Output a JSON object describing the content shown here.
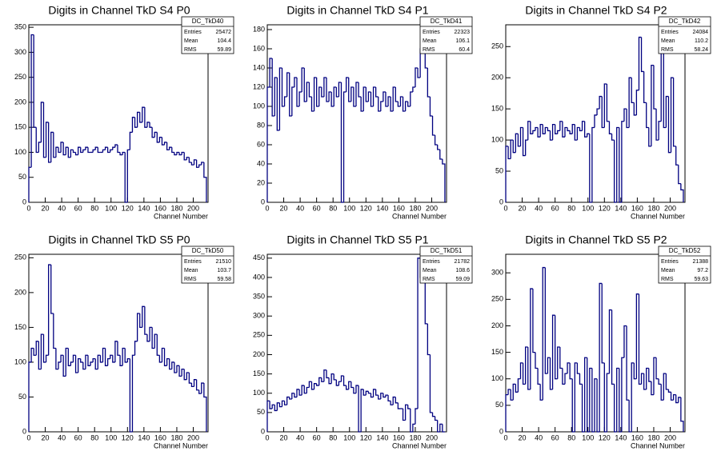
{
  "chart_data": [
    {
      "type": "histogram",
      "title": "Digits in Channel TkD S4 P0",
      "xlabel": "Channel Number",
      "color": "#000080",
      "bins": [
        0,
        3,
        6,
        9,
        12,
        15,
        18,
        21,
        24,
        27,
        30,
        33,
        36,
        39,
        42,
        45,
        48,
        51,
        54,
        57,
        60,
        63,
        66,
        69,
        72,
        75,
        78,
        81,
        84,
        87,
        90,
        93,
        96,
        99,
        102,
        105,
        108,
        111,
        114,
        117,
        120,
        123,
        126,
        129,
        132,
        135,
        138,
        141,
        144,
        147,
        150,
        153,
        156,
        159,
        162,
        165,
        168,
        171,
        174,
        177,
        180,
        183,
        186,
        189,
        192,
        195,
        198,
        201,
        204,
        207,
        210,
        213,
        216
      ],
      "values": [
        70,
        335,
        150,
        100,
        120,
        200,
        90,
        160,
        80,
        140,
        90,
        110,
        100,
        120,
        95,
        110,
        90,
        105,
        100,
        95,
        110,
        100,
        105,
        110,
        100,
        100,
        105,
        110,
        100,
        100,
        105,
        110,
        100,
        105,
        110,
        115,
        100,
        95,
        100,
        0,
        105,
        140,
        170,
        150,
        180,
        160,
        190,
        150,
        160,
        150,
        130,
        140,
        120,
        130,
        115,
        120,
        105,
        110,
        100,
        95,
        100,
        95,
        100,
        85,
        90,
        80,
        75,
        85,
        70,
        75,
        80,
        50
      ],
      "xlim": [
        0,
        218
      ],
      "xticks": [
        0,
        20,
        40,
        60,
        80,
        100,
        120,
        140,
        160,
        180,
        200
      ],
      "ylim": [
        0,
        355
      ],
      "yticks": [
        0,
        50,
        100,
        150,
        200,
        250,
        300,
        350
      ],
      "stats": {
        "name": "DC_TkD40",
        "labels": [
          "Entries",
          "Mean",
          "RMS"
        ],
        "values": [
          25472,
          104.4,
          59.89
        ]
      }
    },
    {
      "type": "histogram",
      "title": "Digits in Channel TkD S4 P1",
      "xlabel": "Channel Number",
      "color": "#000080",
      "bins": [
        0,
        3,
        6,
        9,
        12,
        15,
        18,
        21,
        24,
        27,
        30,
        33,
        36,
        39,
        42,
        45,
        48,
        51,
        54,
        57,
        60,
        63,
        66,
        69,
        72,
        75,
        78,
        81,
        84,
        87,
        90,
        93,
        96,
        99,
        102,
        105,
        108,
        111,
        114,
        117,
        120,
        123,
        126,
        129,
        132,
        135,
        138,
        141,
        144,
        147,
        150,
        153,
        156,
        159,
        162,
        165,
        168,
        171,
        174,
        177,
        180,
        183,
        186,
        189,
        192,
        195,
        198,
        201,
        204,
        207,
        210,
        213,
        216
      ],
      "values": [
        120,
        150,
        90,
        130,
        75,
        140,
        100,
        110,
        135,
        90,
        120,
        130,
        100,
        115,
        140,
        105,
        125,
        110,
        95,
        130,
        100,
        120,
        110,
        130,
        105,
        115,
        100,
        120,
        110,
        125,
        0,
        115,
        130,
        105,
        120,
        100,
        125,
        110,
        95,
        120,
        105,
        115,
        100,
        120,
        110,
        95,
        105,
        115,
        100,
        110,
        95,
        120,
        105,
        100,
        110,
        95,
        105,
        100,
        115,
        120,
        140,
        130,
        160,
        175,
        140,
        110,
        90,
        70,
        60,
        55,
        45,
        40
      ],
      "xlim": [
        0,
        218
      ],
      "xticks": [
        0,
        20,
        40,
        60,
        80,
        100,
        120,
        140,
        160,
        180,
        200
      ],
      "ylim": [
        0,
        185
      ],
      "yticks": [
        0,
        20,
        40,
        60,
        80,
        100,
        120,
        140,
        160,
        180
      ],
      "stats": {
        "name": "DC_TkD41",
        "labels": [
          "Entries",
          "Mean",
          "RMS"
        ],
        "values": [
          22323,
          106.1,
          60.4
        ]
      }
    },
    {
      "type": "histogram",
      "title": "Digits in Channel TkD S4 P2",
      "xlabel": "Channel Number",
      "color": "#000080",
      "bins": [
        0,
        3,
        6,
        9,
        12,
        15,
        18,
        21,
        24,
        27,
        30,
        33,
        36,
        39,
        42,
        45,
        48,
        51,
        54,
        57,
        60,
        63,
        66,
        69,
        72,
        75,
        78,
        81,
        84,
        87,
        90,
        93,
        96,
        99,
        102,
        105,
        108,
        111,
        114,
        117,
        120,
        123,
        126,
        129,
        132,
        135,
        138,
        141,
        144,
        147,
        150,
        153,
        156,
        159,
        162,
        165,
        168,
        171,
        174,
        177,
        180,
        183,
        186,
        189,
        192,
        195,
        198,
        201,
        204,
        207,
        210,
        213,
        216
      ],
      "values": [
        90,
        70,
        100,
        80,
        110,
        90,
        120,
        75,
        100,
        130,
        110,
        115,
        120,
        105,
        125,
        110,
        120,
        115,
        100,
        125,
        110,
        115,
        130,
        105,
        120,
        115,
        110,
        125,
        100,
        120,
        115,
        130,
        105,
        110,
        0,
        120,
        140,
        150,
        170,
        120,
        190,
        130,
        110,
        100,
        0,
        120,
        0,
        130,
        150,
        120,
        200,
        160,
        140,
        180,
        265,
        210,
        160,
        120,
        90,
        220,
        150,
        100,
        130,
        250,
        120,
        170,
        80,
        200,
        90,
        60,
        30,
        20
      ],
      "xlim": [
        0,
        218
      ],
      "xticks": [
        0,
        20,
        40,
        60,
        80,
        100,
        120,
        140,
        160,
        180,
        200
      ],
      "ylim": [
        0,
        285
      ],
      "yticks": [
        0,
        50,
        100,
        150,
        200,
        250
      ],
      "stats": {
        "name": "DC_TkD42",
        "labels": [
          "Entries",
          "Mean",
          "RMS"
        ],
        "values": [
          24084,
          110.2,
          58.24
        ]
      }
    },
    {
      "type": "histogram",
      "title": "Digits in Channel TkD S5 P0",
      "xlabel": "Channel Number",
      "color": "#000080",
      "bins": [
        0,
        3,
        6,
        9,
        12,
        15,
        18,
        21,
        24,
        27,
        30,
        33,
        36,
        39,
        42,
        45,
        48,
        51,
        54,
        57,
        60,
        63,
        66,
        69,
        72,
        75,
        78,
        81,
        84,
        87,
        90,
        93,
        96,
        99,
        102,
        105,
        108,
        111,
        114,
        117,
        120,
        123,
        126,
        129,
        132,
        135,
        138,
        141,
        144,
        147,
        150,
        153,
        156,
        159,
        162,
        165,
        168,
        171,
        174,
        177,
        180,
        183,
        186,
        189,
        192,
        195,
        198,
        201,
        204,
        207,
        210,
        213,
        216
      ],
      "values": [
        100,
        120,
        110,
        130,
        90,
        140,
        100,
        110,
        240,
        170,
        120,
        90,
        100,
        110,
        80,
        120,
        95,
        100,
        110,
        85,
        105,
        100,
        90,
        110,
        95,
        100,
        105,
        90,
        110,
        100,
        120,
        95,
        105,
        110,
        100,
        130,
        110,
        95,
        120,
        100,
        105,
        0,
        110,
        130,
        170,
        150,
        180,
        140,
        130,
        150,
        120,
        140,
        110,
        100,
        120,
        95,
        105,
        90,
        100,
        85,
        95,
        80,
        90,
        75,
        85,
        70,
        65,
        75,
        60,
        55,
        70,
        50
      ],
      "xlim": [
        0,
        218
      ],
      "xticks": [
        0,
        20,
        40,
        60,
        80,
        100,
        120,
        140,
        160,
        180,
        200
      ],
      "ylim": [
        0,
        255
      ],
      "yticks": [
        0,
        50,
        100,
        150,
        200,
        250
      ],
      "stats": {
        "name": "DC_TkD50",
        "labels": [
          "Entries",
          "Mean",
          "RMS"
        ],
        "values": [
          21510,
          103.7,
          59.58
        ]
      }
    },
    {
      "type": "histogram",
      "title": "Digits in Channel TkD S5 P1",
      "xlabel": "Channel Number",
      "color": "#000080",
      "bins": [
        0,
        3,
        6,
        9,
        12,
        15,
        18,
        21,
        24,
        27,
        30,
        33,
        36,
        39,
        42,
        45,
        48,
        51,
        54,
        57,
        60,
        63,
        66,
        69,
        72,
        75,
        78,
        81,
        84,
        87,
        90,
        93,
        96,
        99,
        102,
        105,
        108,
        111,
        114,
        117,
        120,
        123,
        126,
        129,
        132,
        135,
        138,
        141,
        144,
        147,
        150,
        153,
        156,
        159,
        162,
        165,
        168,
        171,
        174,
        177,
        180,
        183,
        186,
        189,
        192,
        195,
        198,
        201,
        204,
        207,
        210,
        213,
        216
      ],
      "values": [
        80,
        60,
        70,
        55,
        75,
        65,
        80,
        70,
        90,
        85,
        100,
        90,
        110,
        95,
        120,
        100,
        115,
        130,
        110,
        125,
        120,
        140,
        130,
        160,
        140,
        125,
        150,
        135,
        120,
        130,
        145,
        120,
        110,
        130,
        115,
        100,
        120,
        0,
        110,
        95,
        105,
        100,
        90,
        110,
        95,
        85,
        100,
        90,
        95,
        80,
        70,
        90,
        75,
        60,
        60,
        30,
        70,
        60,
        0,
        20,
        60,
        450,
        400,
        420,
        280,
        200,
        50,
        40,
        30,
        0,
        20,
        0
      ],
      "xlim": [
        0,
        218
      ],
      "xticks": [
        0,
        20,
        40,
        60,
        80,
        100,
        120,
        140,
        160,
        180,
        200
      ],
      "ylim": [
        0,
        460
      ],
      "yticks": [
        0,
        50,
        100,
        150,
        200,
        250,
        300,
        350,
        400,
        450
      ],
      "stats": {
        "name": "DC_TkD51",
        "labels": [
          "Entries",
          "Mean",
          "RMS"
        ],
        "values": [
          21782,
          108.6,
          59.09
        ]
      }
    },
    {
      "type": "histogram",
      "title": "Digits in Channel TkD S5 P2",
      "xlabel": "Channel Number",
      "color": "#000080",
      "bins": [
        0,
        3,
        6,
        9,
        12,
        15,
        18,
        21,
        24,
        27,
        30,
        33,
        36,
        39,
        42,
        45,
        48,
        51,
        54,
        57,
        60,
        63,
        66,
        69,
        72,
        75,
        78,
        81,
        84,
        87,
        90,
        93,
        96,
        99,
        102,
        105,
        108,
        111,
        114,
        117,
        120,
        123,
        126,
        129,
        132,
        135,
        138,
        141,
        144,
        147,
        150,
        153,
        156,
        159,
        162,
        165,
        168,
        171,
        174,
        177,
        180,
        183,
        186,
        189,
        192,
        195,
        198,
        201,
        204,
        207,
        210,
        213,
        216
      ],
      "values": [
        70,
        80,
        60,
        90,
        75,
        100,
        130,
        90,
        160,
        80,
        270,
        150,
        120,
        90,
        60,
        310,
        110,
        140,
        80,
        220,
        100,
        160,
        120,
        90,
        110,
        130,
        100,
        0,
        130,
        110,
        90,
        0,
        140,
        0,
        120,
        0,
        100,
        0,
        280,
        130,
        0,
        110,
        230,
        90,
        0,
        120,
        0,
        140,
        200,
        60,
        0,
        130,
        100,
        260,
        90,
        110,
        80,
        120,
        95,
        70,
        140,
        100,
        90,
        60,
        110,
        80,
        75,
        60,
        70,
        55,
        65,
        20
      ],
      "xlim": [
        0,
        218
      ],
      "xticks": [
        0,
        20,
        40,
        60,
        80,
        100,
        120,
        140,
        160,
        180,
        200
      ],
      "ylim": [
        0,
        335
      ],
      "yticks": [
        0,
        50,
        100,
        150,
        200,
        250,
        300
      ],
      "stats": {
        "name": "DC_TkD52",
        "labels": [
          "Entries",
          "Mean",
          "RMS"
        ],
        "values": [
          21388,
          97.2,
          59.63
        ]
      }
    }
  ]
}
